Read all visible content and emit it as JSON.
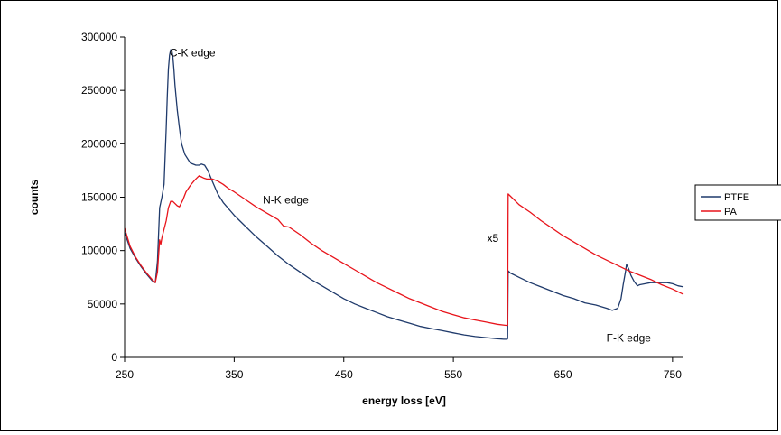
{
  "chart_data": {
    "type": "line",
    "title": "",
    "xlabel": "energy loss [eV]",
    "ylabel": "counts",
    "xlim": [
      250,
      760
    ],
    "ylim": [
      0,
      300000
    ],
    "x_ticks": [
      250,
      350,
      450,
      550,
      650,
      750
    ],
    "x_tick_labels": [
      "250",
      "350",
      "450",
      "550",
      "650",
      "750"
    ],
    "y_ticks": [
      0,
      50000,
      100000,
      150000,
      200000,
      250000,
      300000
    ],
    "y_tick_labels": [
      "0",
      "50000",
      "100000",
      "150000",
      "200000",
      "250000",
      "300000"
    ],
    "grid": false,
    "legend_placement": "right",
    "annotations": [
      {
        "text": "C-K edge",
        "x": 312,
        "y": 282000
      },
      {
        "text": "N-K edge",
        "x": 397,
        "y": 144000
      },
      {
        "text": "x5",
        "x": 586,
        "y": 108000
      },
      {
        "text": "F-K edge",
        "x": 710,
        "y": 15000
      }
    ],
    "series": [
      {
        "name": "PTFE",
        "color": "#1f3a6b",
        "x": [
          250,
          255,
          260,
          265,
          270,
          275,
          278,
          280,
          282,
          284,
          286,
          288,
          289,
          290,
          291,
          292,
          293,
          294,
          295,
          296,
          298,
          300,
          302,
          305,
          310,
          315,
          318,
          320,
          323,
          326,
          330,
          335,
          340,
          350,
          360,
          370,
          380,
          390,
          400,
          410,
          420,
          430,
          440,
          450,
          460,
          470,
          480,
          490,
          500,
          510,
          520,
          530,
          540,
          550,
          560,
          570,
          580,
          590,
          596,
          598,
          599,
          599.5,
          600,
          602,
          610,
          620,
          630,
          640,
          650,
          660,
          670,
          680,
          690,
          695,
          700,
          703,
          705,
          707,
          708,
          709,
          710,
          712,
          715,
          718,
          720,
          725,
          730,
          735,
          740,
          745,
          750,
          755,
          760
        ],
        "y": [
          117000,
          102000,
          93000,
          85000,
          78000,
          72000,
          70000,
          90000,
          140000,
          150000,
          162000,
          215000,
          245000,
          270000,
          283000,
          288000,
          288000,
          282000,
          270000,
          255000,
          232000,
          215000,
          200000,
          190000,
          182000,
          180000,
          180000,
          181000,
          180000,
          175000,
          165000,
          153000,
          145000,
          133000,
          123000,
          113000,
          104000,
          95000,
          87000,
          80000,
          73000,
          67000,
          61000,
          55000,
          50000,
          46000,
          42000,
          38000,
          35000,
          32000,
          29000,
          27000,
          25000,
          23000,
          21000,
          19500,
          18500,
          17500,
          17000,
          17000,
          17000,
          17500,
          81000,
          79000,
          75000,
          70000,
          66000,
          62000,
          58000,
          55000,
          51000,
          49000,
          46000,
          44000,
          46000,
          55000,
          68000,
          80000,
          87000,
          85000,
          83000,
          77000,
          71000,
          67000,
          68000,
          69000,
          70000,
          70000,
          70000,
          70000,
          69000,
          67000,
          66000
        ]
      },
      {
        "name": "PA",
        "color": "#e8141b",
        "x": [
          250,
          255,
          260,
          265,
          270,
          275,
          278,
          280,
          282,
          283,
          284,
          286,
          288,
          290,
          292,
          294,
          296,
          298,
          300,
          303,
          306,
          310,
          314,
          318,
          320,
          322,
          325,
          330,
          335,
          340,
          345,
          350,
          360,
          370,
          380,
          390,
          395,
          400,
          410,
          420,
          430,
          440,
          450,
          460,
          470,
          480,
          490,
          500,
          510,
          520,
          530,
          540,
          550,
          560,
          570,
          580,
          590,
          598,
          599,
          599.5,
          600,
          605,
          610,
          620,
          630,
          640,
          650,
          660,
          670,
          680,
          690,
          700,
          710,
          720,
          730,
          740,
          750,
          760
        ],
        "y": [
          121000,
          104000,
          94000,
          86000,
          79000,
          73000,
          70000,
          80000,
          110000,
          106000,
          112000,
          120000,
          128000,
          140000,
          146000,
          146000,
          144000,
          142000,
          141000,
          147000,
          155000,
          161000,
          166000,
          170000,
          169000,
          168000,
          167000,
          167000,
          165000,
          162000,
          158000,
          155000,
          148000,
          141000,
          135000,
          129000,
          123000,
          122000,
          115000,
          107000,
          100000,
          94000,
          88000,
          82000,
          76000,
          70000,
          65000,
          60000,
          55000,
          51000,
          47000,
          43000,
          40000,
          37000,
          35000,
          33000,
          31000,
          30000,
          30000,
          30000,
          153000,
          148000,
          143000,
          136000,
          128000,
          121000,
          114000,
          108000,
          102000,
          96000,
          91000,
          86000,
          81000,
          77000,
          73000,
          68000,
          64000,
          59000
        ]
      }
    ]
  }
}
